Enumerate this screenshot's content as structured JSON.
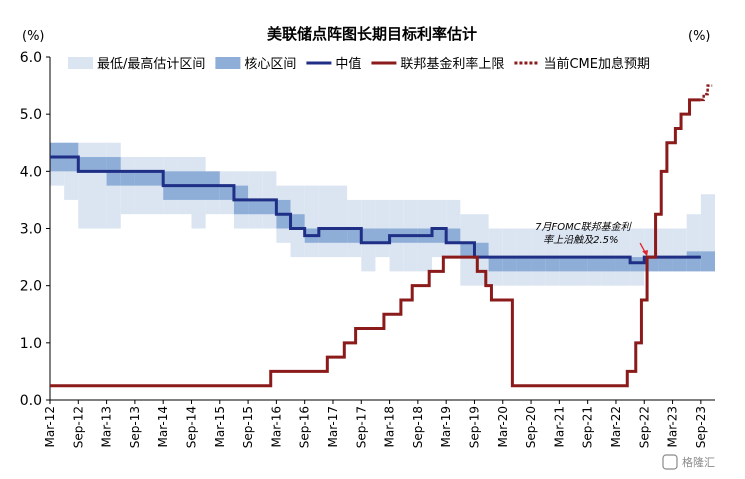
{
  "chart_data": {
    "type": "line",
    "title": "美联储点阵图长期目标利率估计",
    "y_unit_left": "(%)",
    "y_unit_right": "(%)",
    "ylim": [
      0,
      6
    ],
    "yticks": [
      "0.0",
      "1.0",
      "2.0",
      "3.0",
      "4.0",
      "5.0",
      "6.0"
    ],
    "xlim": [
      2012.0,
      2023.75
    ],
    "xticks": [
      "Mar-12",
      "Sep-12",
      "Mar-13",
      "Sep-13",
      "Mar-14",
      "Sep-14",
      "Mar-15",
      "Sep-15",
      "Mar-16",
      "Sep-16",
      "Mar-17",
      "Sep-17",
      "Mar-18",
      "Sep-18",
      "Mar-19",
      "Sep-19",
      "Mar-20",
      "Sep-20",
      "Mar-21",
      "Sep-21",
      "Mar-22",
      "Sep-22",
      "Mar-23",
      "Sep-23"
    ],
    "legend": [
      {
        "name": "最低/最高估计区间",
        "style": "band-light",
        "color": "#dbe4f1"
      },
      {
        "name": "核心区间",
        "style": "band-core",
        "color": "#8eaed8"
      },
      {
        "name": "中值",
        "style": "line",
        "color": "#1f2f86"
      },
      {
        "name": "联邦基金利率上限",
        "style": "line",
        "color": "#8b1a1a"
      },
      {
        "name": "当前CME加息预期",
        "style": "dashed",
        "color": "#8b1a1a"
      }
    ],
    "series": [
      {
        "name": "最低/最高估计区间",
        "kind": "band",
        "color": "#dbe4f1",
        "x": [
          2012.0,
          2012.25,
          2012.5,
          2012.75,
          2013.0,
          2013.25,
          2013.5,
          2013.75,
          2014.0,
          2014.25,
          2014.5,
          2014.75,
          2015.0,
          2015.25,
          2015.5,
          2015.75,
          2016.0,
          2016.25,
          2016.5,
          2016.75,
          2017.0,
          2017.25,
          2017.5,
          2017.75,
          2018.0,
          2018.25,
          2018.5,
          2018.75,
          2019.0,
          2019.25,
          2019.5,
          2019.75,
          2020.0,
          2020.25,
          2020.5,
          2020.75,
          2021.0,
          2021.25,
          2021.5,
          2021.75,
          2022.0,
          2022.25,
          2022.5,
          2022.75,
          2023.0,
          2023.25,
          2023.5
        ],
        "low": [
          3.75,
          3.5,
          3.0,
          3.0,
          3.0,
          3.25,
          3.25,
          3.25,
          3.25,
          3.25,
          3.0,
          3.25,
          3.25,
          3.0,
          3.0,
          3.0,
          2.75,
          2.5,
          2.5,
          2.5,
          2.5,
          2.5,
          2.25,
          2.5,
          2.25,
          2.25,
          2.25,
          2.5,
          2.5,
          2.0,
          2.0,
          2.0,
          2.0,
          2.0,
          2.0,
          2.0,
          2.0,
          2.0,
          2.0,
          2.0,
          2.0,
          2.0,
          2.25,
          2.25,
          2.25,
          2.25,
          2.25
        ],
        "high": [
          4.5,
          4.5,
          4.5,
          4.5,
          4.5,
          4.25,
          4.25,
          4.25,
          4.25,
          4.25,
          4.25,
          4.0,
          4.0,
          4.0,
          4.0,
          4.0,
          3.75,
          3.75,
          3.75,
          3.75,
          3.75,
          3.5,
          3.5,
          3.5,
          3.5,
          3.5,
          3.5,
          3.5,
          3.5,
          3.25,
          3.25,
          3.0,
          3.0,
          3.0,
          3.0,
          3.0,
          3.0,
          3.0,
          3.0,
          3.0,
          3.0,
          3.0,
          3.0,
          3.0,
          3.0,
          3.25,
          3.6
        ]
      },
      {
        "name": "核心区间",
        "kind": "band",
        "color": "#8eaed8",
        "x": [
          2012.0,
          2012.5,
          2013.0,
          2013.25,
          2013.5,
          2014.0,
          2014.5,
          2015.0,
          2015.25,
          2015.5,
          2016.0,
          2016.25,
          2016.5,
          2016.75,
          2017.0,
          2017.25,
          2017.5,
          2018.0,
          2018.5,
          2018.75,
          2019.0,
          2019.25,
          2019.5,
          2019.75,
          2020.0,
          2020.25,
          2020.5,
          2020.75,
          2021.0,
          2021.5,
          2022.0,
          2022.25,
          2022.5,
          2022.75,
          2023.0,
          2023.25,
          2023.5
        ],
        "low": [
          4.0,
          4.0,
          3.75,
          3.75,
          3.75,
          3.5,
          3.5,
          3.5,
          3.25,
          3.25,
          3.0,
          3.0,
          2.75,
          2.75,
          2.75,
          2.75,
          2.75,
          2.75,
          2.75,
          2.75,
          2.75,
          2.5,
          2.5,
          2.25,
          2.25,
          2.25,
          2.25,
          2.25,
          2.25,
          2.25,
          2.25,
          2.25,
          2.25,
          2.25,
          2.25,
          2.25,
          2.25
        ],
        "high": [
          4.5,
          4.25,
          4.25,
          4.0,
          4.0,
          4.0,
          4.0,
          3.75,
          3.75,
          3.5,
          3.5,
          3.25,
          3.0,
          3.0,
          3.0,
          3.0,
          3.0,
          3.0,
          3.0,
          3.0,
          3.0,
          2.75,
          2.75,
          2.5,
          2.5,
          2.5,
          2.5,
          2.5,
          2.5,
          2.5,
          2.5,
          2.5,
          2.5,
          2.5,
          2.5,
          2.6,
          2.6
        ]
      },
      {
        "name": "中值",
        "kind": "step",
        "color": "#1f2f86",
        "x": [
          2012.0,
          2012.5,
          2013.0,
          2013.5,
          2014.0,
          2014.5,
          2015.0,
          2015.25,
          2015.5,
          2016.0,
          2016.25,
          2016.5,
          2016.75,
          2017.0,
          2017.25,
          2017.5,
          2018.0,
          2018.5,
          2018.75,
          2019.0,
          2019.25,
          2019.5,
          2019.75,
          2020.0,
          2020.5,
          2021.0,
          2022.0,
          2022.25,
          2022.5,
          2022.75,
          2023.0,
          2023.25,
          2023.5
        ],
        "y": [
          4.25,
          4.0,
          4.0,
          4.0,
          3.75,
          3.75,
          3.75,
          3.5,
          3.5,
          3.25,
          3.0,
          2.875,
          3.0,
          3.0,
          3.0,
          2.75,
          2.875,
          2.875,
          3.0,
          2.75,
          2.75,
          2.5,
          2.5,
          2.5,
          2.5,
          2.5,
          2.5,
          2.4,
          2.5,
          2.5,
          2.5,
          2.5,
          2.5
        ]
      },
      {
        "name": "联邦基金利率上限",
        "kind": "step",
        "color": "#8b1a1a",
        "x": [
          2012.0,
          2015.9,
          2016.9,
          2017.2,
          2017.4,
          2017.9,
          2018.2,
          2018.4,
          2018.7,
          2018.95,
          2019.55,
          2019.7,
          2019.8,
          2020.17,
          2020.2,
          2022.2,
          2022.35,
          2022.45,
          2022.55,
          2022.7,
          2022.8,
          2022.9,
          2023.05,
          2023.15,
          2023.3,
          2023.5
        ],
        "y": [
          0.25,
          0.5,
          0.75,
          1.0,
          1.25,
          1.5,
          1.75,
          2.0,
          2.25,
          2.5,
          2.25,
          2.0,
          1.75,
          0.25,
          0.25,
          0.5,
          1.0,
          1.75,
          2.5,
          3.25,
          4.0,
          4.5,
          4.75,
          5.0,
          5.25,
          5.25
        ]
      },
      {
        "name": "当前CME加息预期",
        "kind": "dashed",
        "color": "#8b1a1a",
        "x": [
          2023.5,
          2023.55,
          2023.62,
          2023.7
        ],
        "y": [
          5.25,
          5.35,
          5.5,
          5.5
        ]
      }
    ],
    "annotations": [
      {
        "text_line1": "7月FOMC联邦基金利",
        "text_line2": "率上沿触及2.5%",
        "x": 2022.55,
        "y": 2.5
      }
    ]
  },
  "watermark": "格隆汇"
}
